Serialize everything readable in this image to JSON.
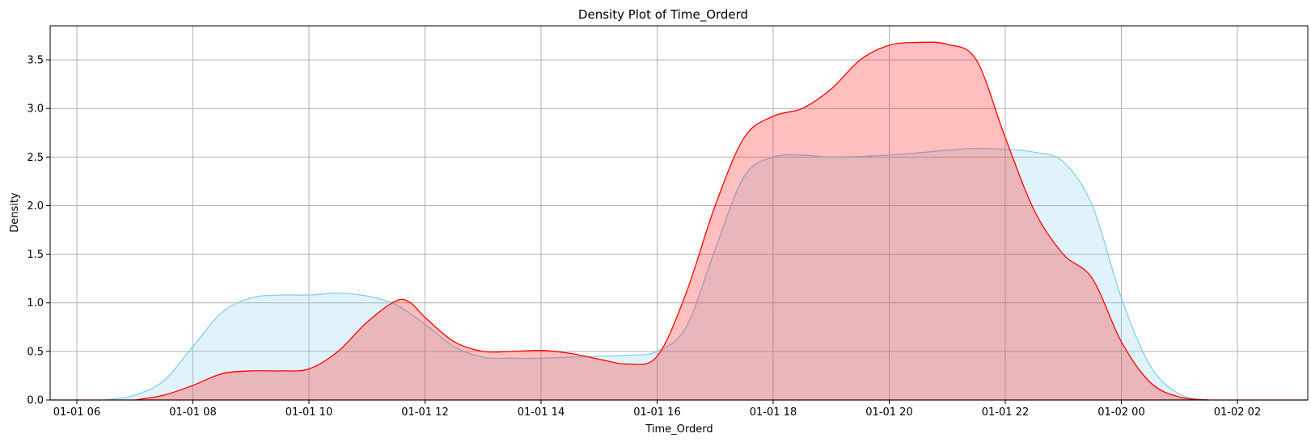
{
  "chart_data": {
    "type": "area",
    "title": "Density Plot of Time_Orderd",
    "xlabel": "Time_Orderd",
    "ylabel": "Density",
    "x_tick_labels": [
      "01-01 06",
      "01-01 08",
      "01-01 10",
      "01-01 12",
      "01-01 14",
      "01-01 16",
      "01-01 18",
      "01-01 20",
      "01-01 22",
      "01-02 00",
      "01-02 02"
    ],
    "y_tick_labels": [
      "0.0",
      "0.5",
      "1.0",
      "1.5",
      "2.0",
      "2.5",
      "3.0",
      "3.5"
    ],
    "xlim": [
      "01-01 05:05",
      "01-02 02:25"
    ],
    "ylim": [
      0,
      3.85
    ],
    "grid": true,
    "series": [
      {
        "color": "#87ceeb",
        "fill": "#87ceeb",
        "x": [
          "01-01 06:30",
          "01-01 07:00",
          "01-01 07:30",
          "01-01 08:00",
          "01-01 08:30",
          "01-01 09:00",
          "01-01 09:30",
          "01-01 10:00",
          "01-01 10:30",
          "01-01 11:00",
          "01-01 11:30",
          "01-01 12:00",
          "01-01 12:30",
          "01-01 13:00",
          "01-01 13:30",
          "01-01 14:00",
          "01-01 15:00",
          "01-01 15:30",
          "01-01 16:00",
          "01-01 16:30",
          "01-01 17:00",
          "01-01 17:30",
          "01-01 18:00",
          "01-01 18:30",
          "01-01 19:00",
          "01-01 20:00",
          "01-01 21:00",
          "01-01 21:30",
          "01-01 22:00",
          "01-01 22:30",
          "01-01 23:00",
          "01-01 23:30",
          "01-02 00:00",
          "01-02 00:30",
          "01-02 01:00",
          "01-02 01:30"
        ],
        "y": [
          0.0,
          0.05,
          0.2,
          0.55,
          0.9,
          1.05,
          1.08,
          1.08,
          1.1,
          1.07,
          0.98,
          0.78,
          0.55,
          0.44,
          0.43,
          0.43,
          0.45,
          0.46,
          0.5,
          0.75,
          1.55,
          2.3,
          2.5,
          2.52,
          2.5,
          2.52,
          2.57,
          2.59,
          2.58,
          2.55,
          2.45,
          2.0,
          1.05,
          0.35,
          0.06,
          0.0
        ]
      },
      {
        "color": "#ff0000",
        "fill": "#ff0000",
        "x": [
          "01-01 07:00",
          "01-01 07:30",
          "01-01 08:00",
          "01-01 08:30",
          "01-01 09:00",
          "01-01 09:30",
          "01-01 10:00",
          "01-01 10:30",
          "01-01 11:00",
          "01-01 11:30",
          "01-01 11:45",
          "01-01 12:00",
          "01-01 12:30",
          "01-01 13:00",
          "01-01 13:30",
          "01-01 14:00",
          "01-01 14:30",
          "01-01 15:00",
          "01-01 15:30",
          "01-01 16:00",
          "01-01 16:30",
          "01-01 17:00",
          "01-01 17:30",
          "01-01 18:00",
          "01-01 18:30",
          "01-01 19:00",
          "01-01 19:30",
          "01-01 20:00",
          "01-01 20:30",
          "01-01 21:00",
          "01-01 21:30",
          "01-01 22:00",
          "01-01 22:30",
          "01-01 23:00",
          "01-01 23:30",
          "01-02 00:00",
          "01-02 00:30",
          "01-02 01:00",
          "01-02 01:30"
        ],
        "y": [
          0.0,
          0.05,
          0.15,
          0.27,
          0.3,
          0.3,
          0.32,
          0.5,
          0.8,
          1.02,
          1.0,
          0.85,
          0.6,
          0.5,
          0.5,
          0.51,
          0.48,
          0.42,
          0.37,
          0.45,
          1.1,
          2.0,
          2.7,
          2.92,
          3.0,
          3.2,
          3.5,
          3.65,
          3.68,
          3.66,
          3.5,
          2.7,
          1.95,
          1.5,
          1.25,
          0.6,
          0.18,
          0.03,
          0.0
        ]
      }
    ]
  }
}
